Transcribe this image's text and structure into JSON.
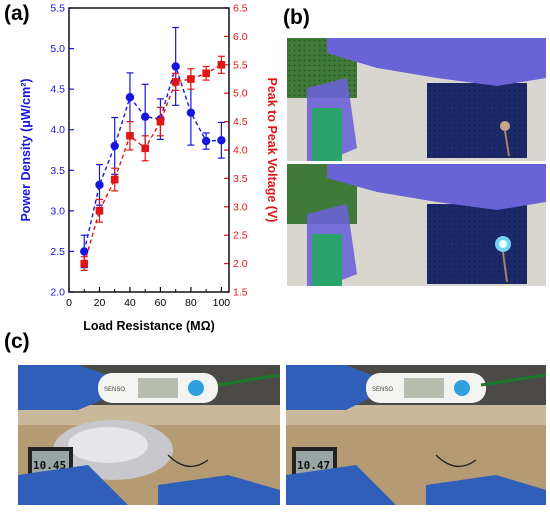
{
  "panels": {
    "a": "(a)",
    "b": "(b)",
    "c": "(c)"
  },
  "chart_data": {
    "type": "line",
    "x": [
      10,
      20,
      30,
      40,
      50,
      60,
      70,
      80,
      90,
      100
    ],
    "xlabel": "Load Resistance (MΩ)",
    "xlim": [
      0,
      105
    ],
    "xticks": [
      "0",
      "20",
      "40",
      "60",
      "80",
      "100"
    ],
    "ylabel_left": "Power Density (μW/cm²)",
    "ylim_left": [
      2.0,
      5.5
    ],
    "yticks_left": [
      "2.0",
      "2.5",
      "3.0",
      "3.5",
      "4.0",
      "4.5",
      "5.0",
      "5.5"
    ],
    "ylabel_right": "Peak to Peak Voltage (V)",
    "ylim_right": [
      1.5,
      6.5
    ],
    "yticks_right": [
      "1.5",
      "2.0",
      "2.5",
      "3.0",
      "3.5",
      "4.0",
      "4.5",
      "5.0",
      "5.5",
      "6.0",
      "6.5"
    ],
    "series": [
      {
        "axis": "left",
        "color": "#1515e0",
        "marker": "circle",
        "values": [
          2.5,
          3.32,
          3.8,
          4.4,
          4.16,
          4.13,
          4.78,
          4.21,
          3.86,
          3.87
        ],
        "errors": [
          0.2,
          0.25,
          0.35,
          0.3,
          0.4,
          0.25,
          0.48,
          0.4,
          0.1,
          0.22
        ]
      },
      {
        "axis": "right",
        "color": "#e01515",
        "marker": "square",
        "values": [
          2.0,
          2.93,
          3.48,
          4.25,
          4.03,
          4.5,
          5.2,
          5.25,
          5.35,
          5.5
        ],
        "errors": [
          0.12,
          0.2,
          0.2,
          0.25,
          0.22,
          0.25,
          0.15,
          0.18,
          0.12,
          0.15
        ]
      }
    ]
  },
  "photos": {
    "c1_display": "10.45",
    "c2_display": "10.47",
    "thermo_brand": "SENSO"
  }
}
